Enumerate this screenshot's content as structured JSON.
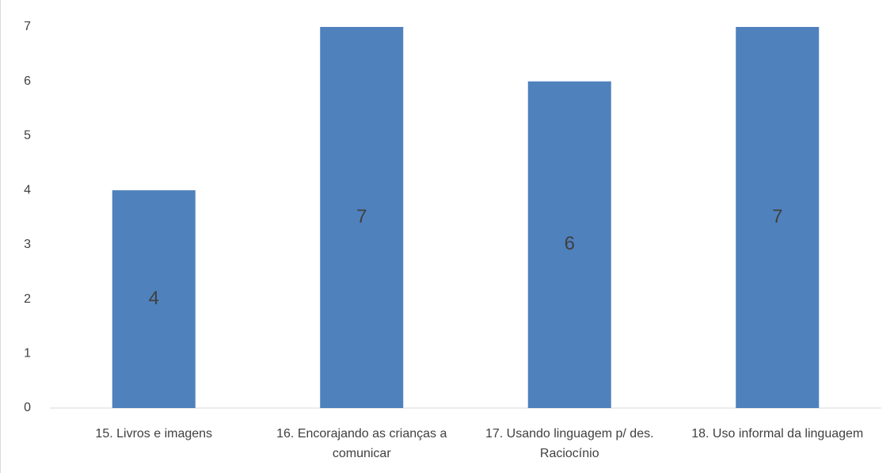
{
  "chart_data": {
    "type": "bar",
    "categories": [
      "15. Livros e imagens",
      "16. Encorajando as crianças a comunicar",
      "17. Usando linguagem p/ des. Raciocínio",
      "18. Uso informal da linguagem"
    ],
    "values": [
      4,
      7,
      6,
      7
    ],
    "color": "#4f81bd",
    "ylim": [
      0,
      7
    ],
    "yticks": [
      0,
      1,
      2,
      3,
      4,
      5,
      6,
      7
    ],
    "grid": false
  }
}
